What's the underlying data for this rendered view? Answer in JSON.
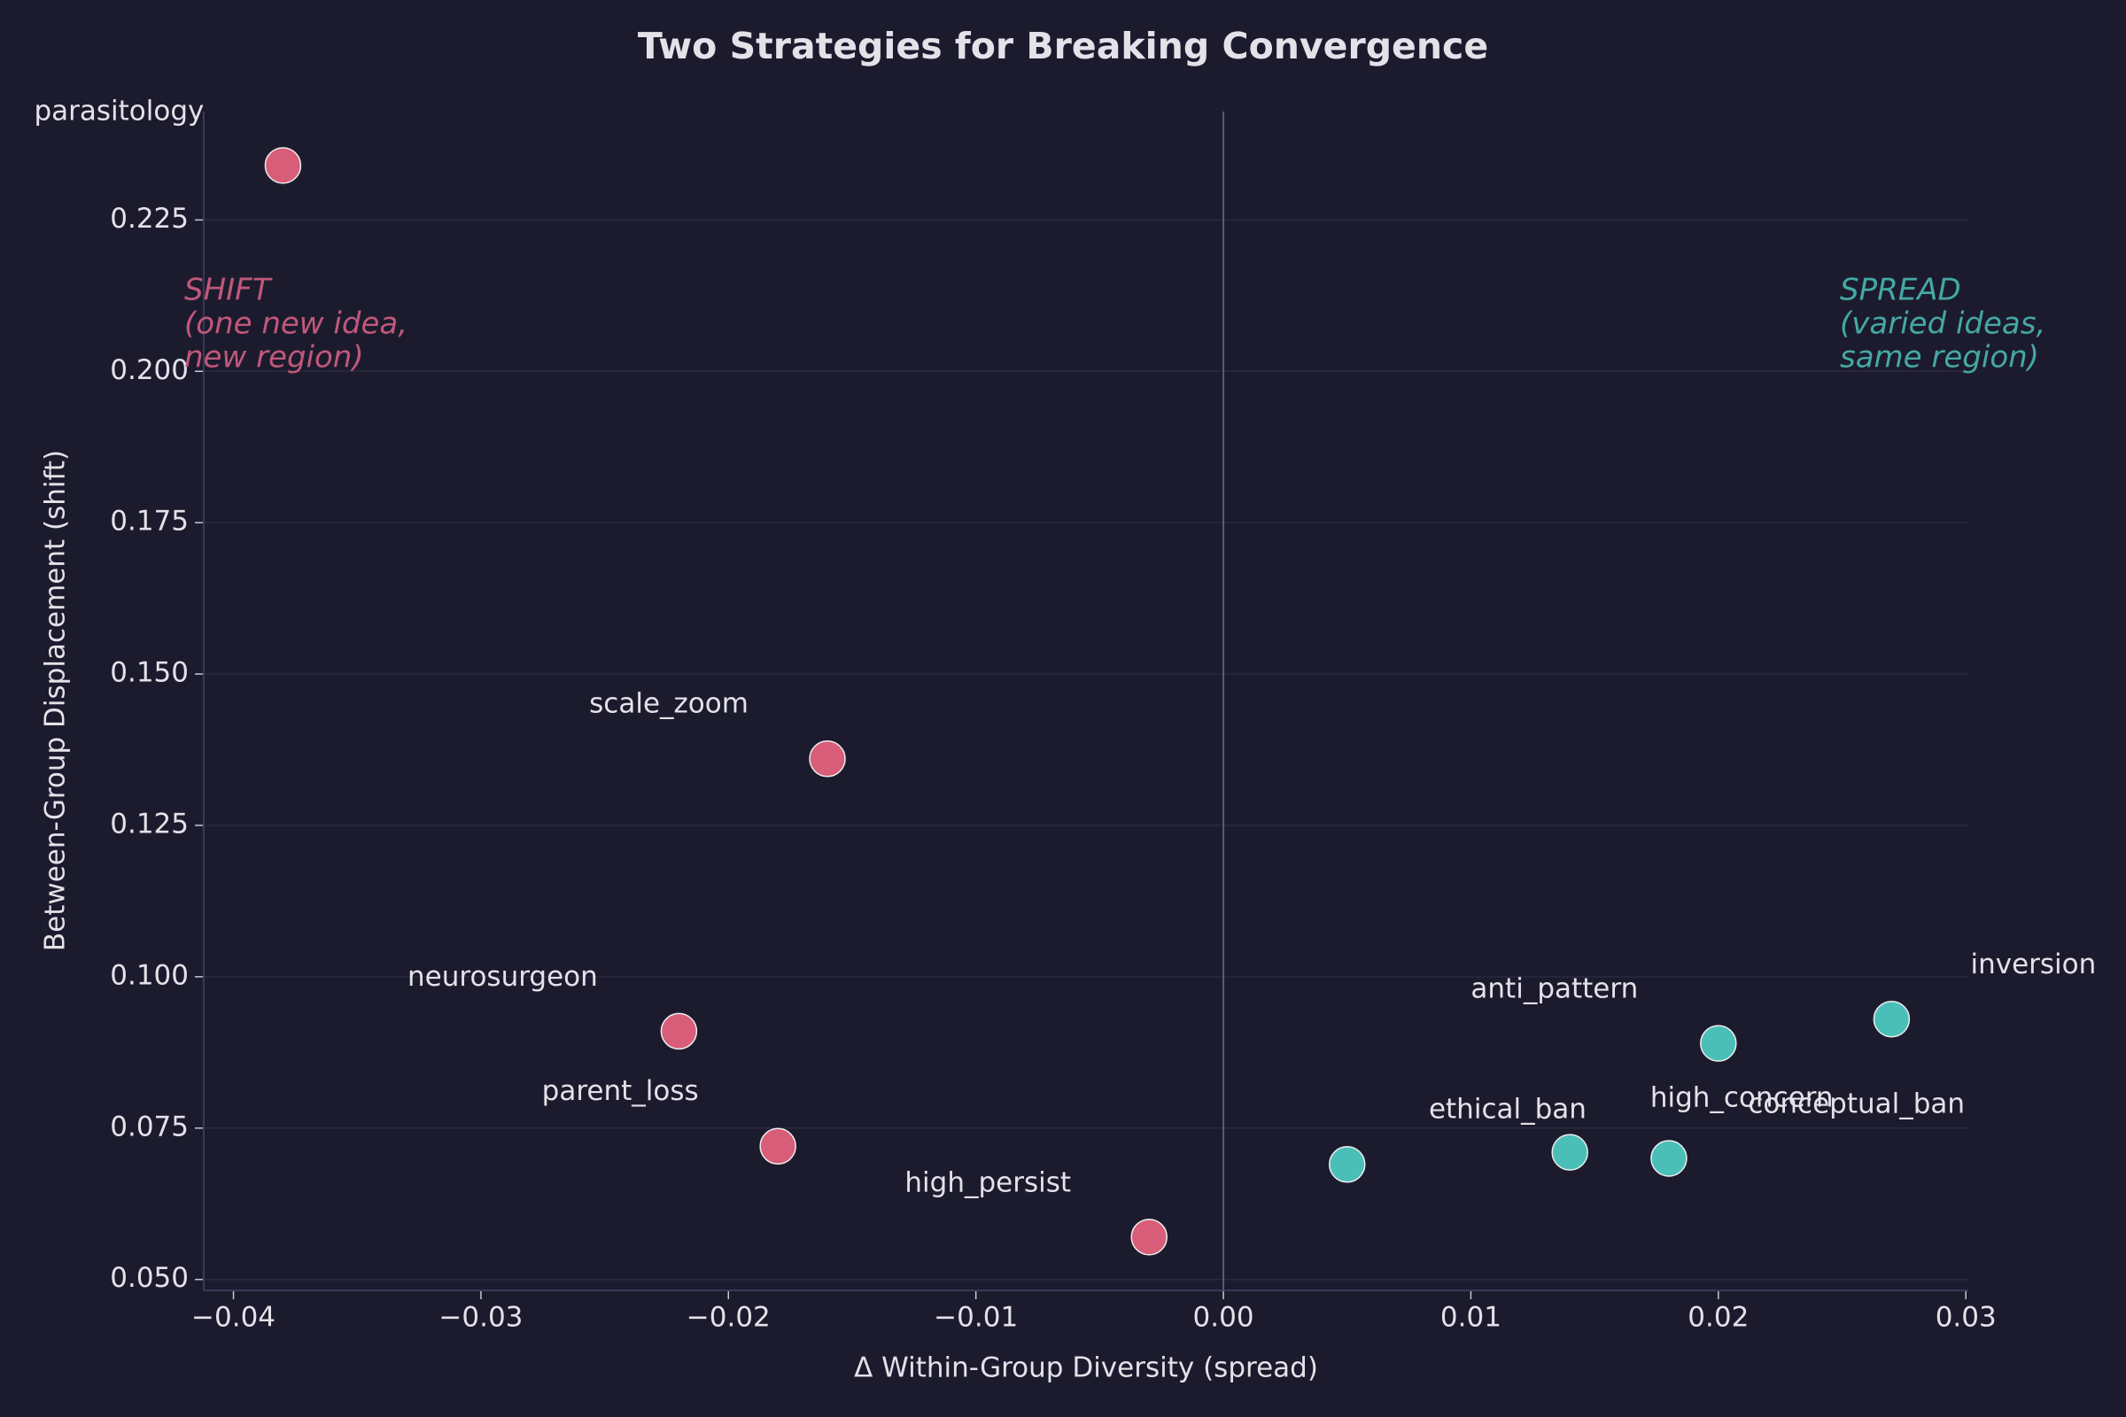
{
  "chart_data": {
    "type": "scatter",
    "title": "Two Strategies for Breaking Convergence",
    "xlabel": "Δ Within-Group Diversity (spread)",
    "ylabel": "Between-Group Displacement (shift)",
    "xlim": [
      -0.0412,
      0.0301
    ],
    "ylim": [
      0.0482,
      0.2429
    ],
    "xticks": [
      {
        "value": -0.04,
        "label": "−0.04"
      },
      {
        "value": -0.03,
        "label": "−0.03"
      },
      {
        "value": -0.02,
        "label": "−0.02"
      },
      {
        "value": -0.01,
        "label": "−0.01"
      },
      {
        "value": 0,
        "label": "0.00"
      },
      {
        "value": 0.01,
        "label": "0.01"
      },
      {
        "value": 0.02,
        "label": "0.02"
      },
      {
        "value": 0.03,
        "label": "0.03"
      }
    ],
    "yticks": [
      {
        "value": 0.05,
        "label": "0.050"
      },
      {
        "value": 0.075,
        "label": "0.075"
      },
      {
        "value": 0.1,
        "label": "0.100"
      },
      {
        "value": 0.125,
        "label": "0.125"
      },
      {
        "value": 0.15,
        "label": "0.150"
      },
      {
        "value": 0.175,
        "label": "0.175"
      },
      {
        "value": 0.2,
        "label": "0.200"
      },
      {
        "value": 0.225,
        "label": "0.225"
      }
    ],
    "grid": true,
    "vline": 0,
    "series": [
      {
        "color": "#e8637f",
        "labels": [
          "parasitology",
          "scale_zoom",
          "neurosurgeon",
          "parent_loss",
          "high_persist"
        ],
        "x": [
          -0.038,
          -0.016,
          -0.022,
          -0.018,
          -0.003
        ],
        "y": [
          0.234,
          0.136,
          0.091,
          0.072,
          0.057
        ]
      },
      {
        "color": "#4ecdc4",
        "labels": [
          "conceptual_ban",
          "high_concern",
          "ethical_ban",
          "anti_pattern",
          "inversion"
        ],
        "x": [
          0.005,
          0.014,
          0.018,
          0.02,
          0.027
        ],
        "y": [
          0.069,
          0.071,
          0.07,
          0.089,
          0.093
        ]
      }
    ],
    "annotations": [
      {
        "lines": [
          "SHIFT",
          "(one new idea,",
          "new region)"
        ],
        "color": "#c0587a"
      },
      {
        "lines": [
          "SPREAD",
          "(varied ideas,",
          "same region)"
        ],
        "color": "#45a8a4"
      }
    ]
  }
}
